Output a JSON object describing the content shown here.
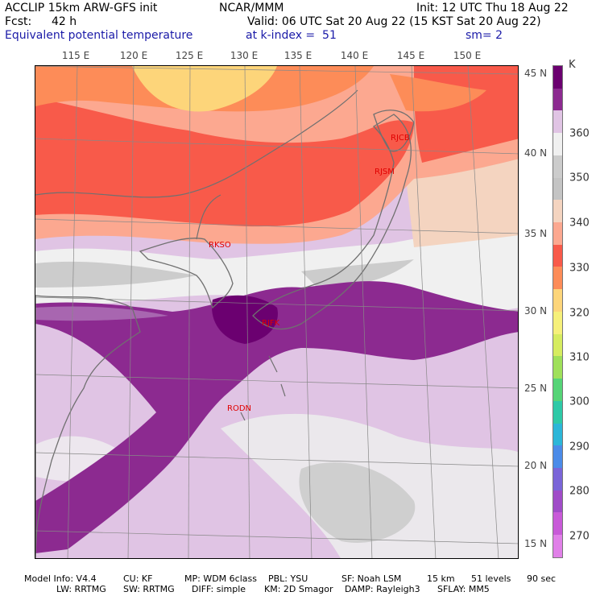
{
  "header": {
    "model": "ACCLIP 15km ARW-GFS init",
    "org": "NCAR/MMM",
    "init": "Init: 12 UTC Thu 18 Aug 22",
    "fcst_label": "Fcst:",
    "fcst_value": "42 h",
    "valid": "Valid: 06 UTC Sat 20 Aug 22 (15 KST Sat 20 Aug 22)",
    "field": "Equivalent potential temperature",
    "level": "at k-index =  51",
    "smoothing": "sm= 2"
  },
  "map": {
    "lon_ticks": [
      "115 E",
      "120 E",
      "125 E",
      "130 E",
      "135 E",
      "140 E",
      "145 E",
      "150 E"
    ],
    "lat_ticks": [
      "45 N",
      "40 N",
      "35 N",
      "30 N",
      "25 N",
      "20 N",
      "15 N"
    ],
    "stations": [
      {
        "id": "RJCB",
        "color": "#e00000"
      },
      {
        "id": "RJSM",
        "color": "#e00000"
      },
      {
        "id": "RKSO",
        "color": "#e00000"
      },
      {
        "id": "RJFK",
        "color": "#e00000"
      },
      {
        "id": "RODN",
        "color": "#e00000"
      }
    ],
    "field_colors": {
      "above_370": "#6b0070",
      "365_370": "#8c2a90",
      "360_365": "#a866b0",
      "355_360": "#e0c4e4",
      "350_355": "#f0f0f0",
      "345_350": "#cccccc",
      "340_345": "#f4d4c0",
      "335_340": "#fca890",
      "330_335": "#f85a4a",
      "320_330": "#fd8c58",
      "310_320": "#fdd57a"
    }
  },
  "colorbar": {
    "unit": "K",
    "labels": [
      "360",
      "350",
      "340",
      "330",
      "320",
      "310",
      "300",
      "290",
      "280",
      "270"
    ],
    "colors": [
      "#6b0070",
      "#8c2a90",
      "#e0c4e4",
      "#f0f0f0",
      "#cccccc",
      "#c4c4c4",
      "#f4d4c0",
      "#fca890",
      "#f85a4a",
      "#fd8c58",
      "#fdd57a",
      "#f6f07a",
      "#d6ec60",
      "#9fe05a",
      "#56d477",
      "#2ec9a7",
      "#2cb6d8",
      "#4b8be8",
      "#7a65d8",
      "#a04cc8",
      "#c85ad8",
      "#e080e8"
    ]
  },
  "footer": {
    "line1": [
      "Model Info: V4.4",
      "CU: KF",
      "MP: WDM 6class",
      "PBL: YSU",
      "SF: Noah LSM",
      "15 km",
      "51 levels",
      "90 sec"
    ],
    "line2": [
      "LW: RRTMG",
      "SW: RRTMG",
      "DIFF: simple",
      "KM: 2D Smagor",
      "DAMP: Rayleigh3",
      "SFLAY: MM5"
    ]
  }
}
